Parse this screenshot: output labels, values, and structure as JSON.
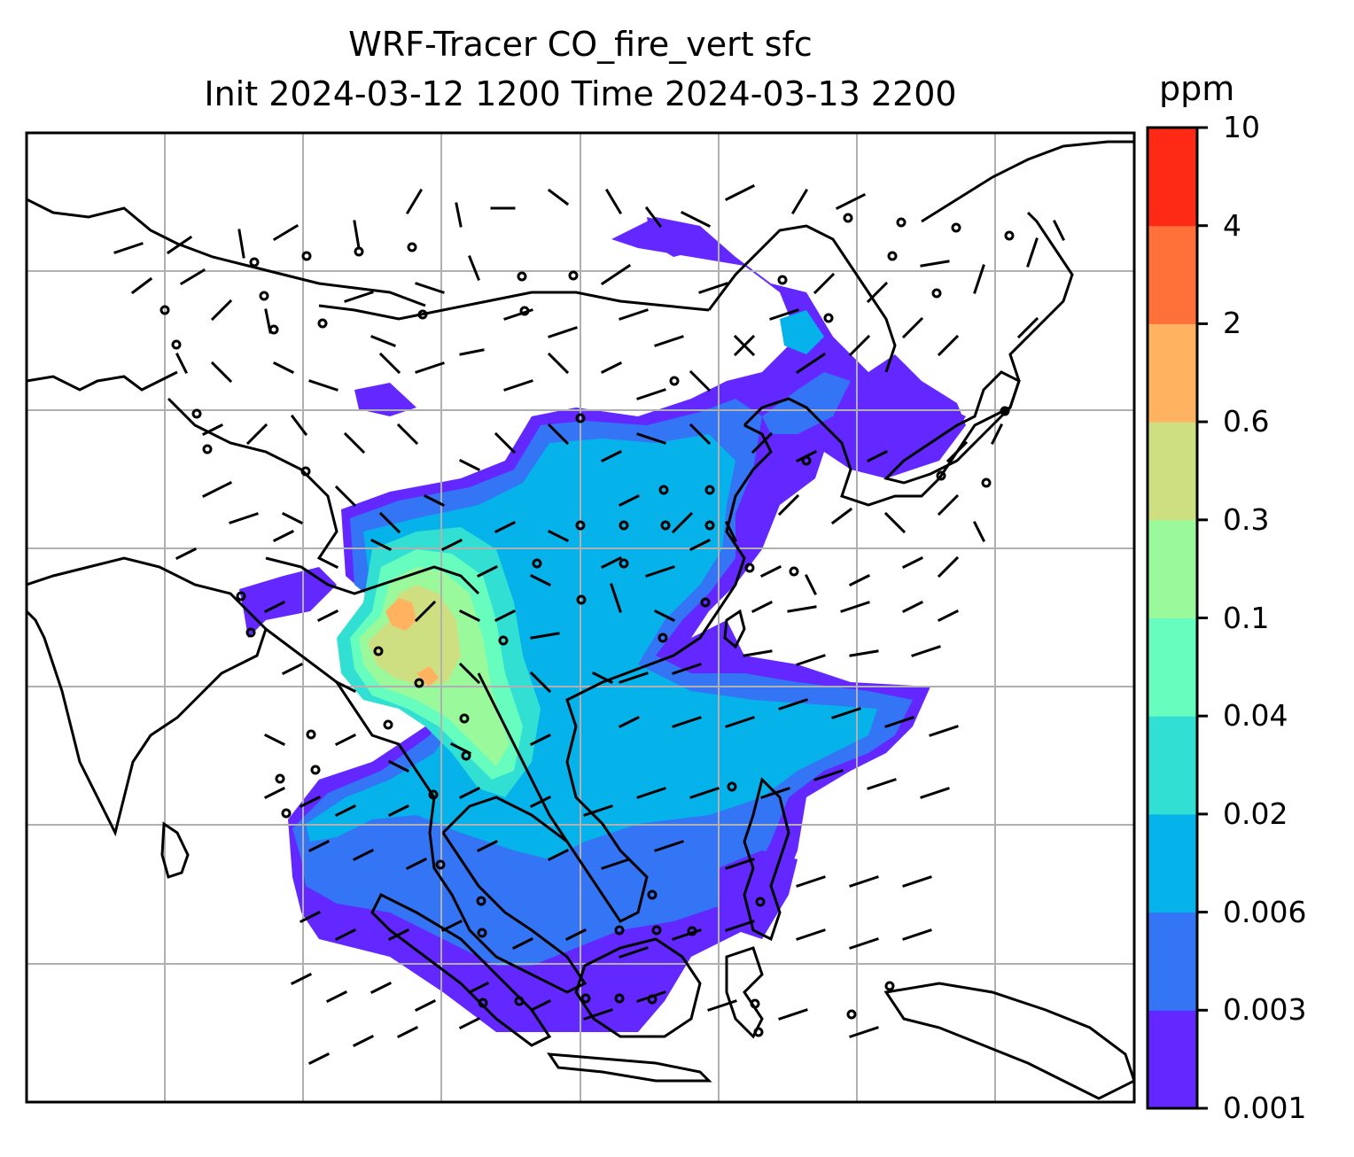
{
  "title": {
    "line1": "WRF-Tracer CO_fire_vert sfc",
    "line2": "Init 2024-03-12 1200 Time 2024-03-13 2200"
  },
  "colorbar": {
    "unit": "ppm",
    "levels": [
      "0.001",
      "0.003",
      "0.006",
      "0.02",
      "0.04",
      "0.1",
      "0.3",
      "0.6",
      "2",
      "4",
      "10"
    ],
    "colors": [
      "#6327ff",
      "#3375f5",
      "#06b2ea",
      "#31dfd3",
      "#66fdbf",
      "#9af99a",
      "#cedf82",
      "#ffb25f",
      "#ff7138",
      "#ff2a15"
    ]
  },
  "map": {
    "grid": true,
    "background": "#ffffff",
    "coastline_color": "#000000",
    "wind_barbs": true
  }
}
